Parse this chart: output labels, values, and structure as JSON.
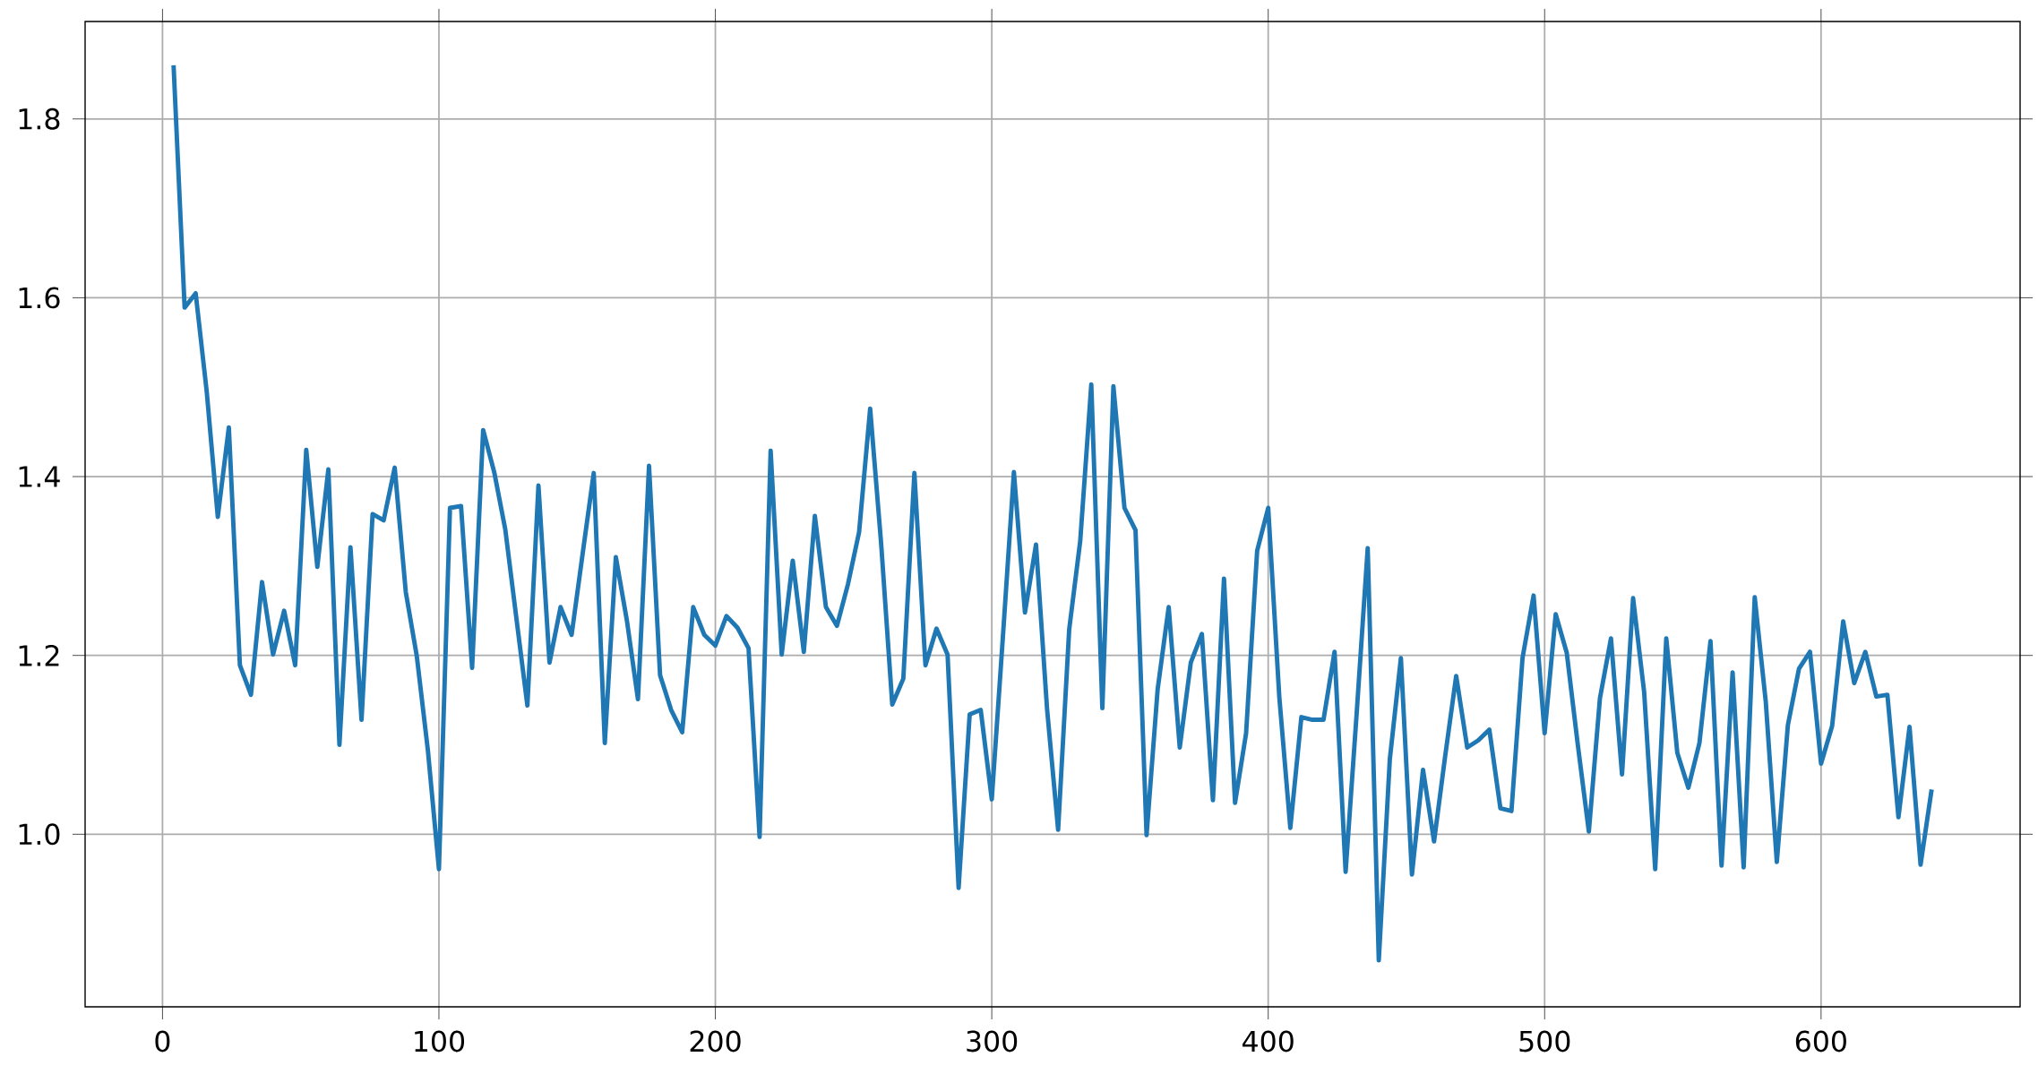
{
  "chart_data": {
    "type": "line",
    "x": [
      4,
      8,
      12,
      16,
      20,
      24,
      28,
      32,
      36,
      40,
      44,
      48,
      52,
      56,
      60,
      64,
      68,
      72,
      76,
      80,
      84,
      88,
      92,
      96,
      100,
      104,
      108,
      112,
      116,
      120,
      124,
      128,
      132,
      136,
      140,
      144,
      148,
      152,
      156,
      160,
      164,
      168,
      172,
      176,
      180,
      184,
      188,
      192,
      196,
      200,
      204,
      208,
      212,
      216,
      220,
      224,
      228,
      232,
      236,
      240,
      244,
      248,
      252,
      256,
      260,
      264,
      268,
      272,
      276,
      280,
      284,
      288,
      292,
      296,
      300,
      304,
      308,
      312,
      316,
      320,
      324,
      328,
      332,
      336,
      340,
      344,
      348,
      352,
      356,
      360,
      364,
      368,
      372,
      376,
      380,
      384,
      388,
      392,
      396,
      400,
      404,
      408,
      412,
      416,
      420,
      424,
      428,
      432,
      436,
      440,
      444,
      448,
      452,
      456,
      460,
      464,
      468,
      472,
      476,
      480,
      484,
      488,
      492,
      496,
      500,
      504,
      508,
      512,
      516,
      520,
      524,
      528,
      532,
      536,
      540,
      544,
      548,
      552,
      556,
      560,
      564,
      568,
      572,
      576,
      580,
      584,
      588,
      592,
      596,
      600,
      604,
      608,
      612,
      616,
      620,
      624,
      628,
      632,
      636,
      640
    ],
    "series": [
      {
        "color": "#1f77b4",
        "values": [
          1.86,
          1.589,
          1.605,
          1.495,
          1.355,
          1.455,
          1.189,
          1.156,
          1.282,
          1.201,
          1.25,
          1.189,
          1.43,
          1.299,
          1.408,
          1.1,
          1.321,
          1.128,
          1.358,
          1.351,
          1.41,
          1.271,
          1.199,
          1.094,
          0.961,
          1.365,
          1.367,
          1.186,
          1.452,
          1.405,
          1.341,
          1.242,
          1.144,
          1.39,
          1.192,
          1.254,
          1.223,
          1.314,
          1.404,
          1.102,
          1.31,
          1.239,
          1.151,
          1.412,
          1.178,
          1.139,
          1.114,
          1.254,
          1.223,
          1.211,
          1.244,
          1.231,
          1.208,
          0.997,
          1.429,
          1.201,
          1.306,
          1.204,
          1.356,
          1.254,
          1.233,
          1.28,
          1.338,
          1.476,
          1.324,
          1.145,
          1.174,
          1.404,
          1.189,
          1.23,
          1.201,
          0.94,
          1.134,
          1.139,
          1.039,
          1.22,
          1.405,
          1.248,
          1.324,
          1.14,
          1.005,
          1.229,
          1.328,
          1.503,
          1.141,
          1.501,
          1.365,
          1.34,
          0.999,
          1.162,
          1.254,
          1.097,
          1.192,
          1.224,
          1.038,
          1.286,
          1.035,
          1.113,
          1.317,
          1.365,
          1.154,
          1.007,
          1.131,
          1.128,
          1.128,
          1.204,
          0.958,
          1.135,
          1.32,
          0.859,
          1.084,
          1.197,
          0.955,
          1.072,
          0.992,
          1.087,
          1.177,
          1.097,
          1.105,
          1.117,
          1.029,
          1.026,
          1.197,
          1.267,
          1.113,
          1.246,
          1.203,
          1.1,
          1.003,
          1.152,
          1.219,
          1.067,
          1.264,
          1.159,
          0.961,
          1.219,
          1.091,
          1.052,
          1.102,
          1.216,
          0.965,
          1.181,
          0.963,
          1.265,
          1.148,
          0.969,
          1.122,
          1.185,
          1.204,
          1.079,
          1.121,
          1.238,
          1.169,
          1.204,
          1.154,
          1.156,
          1.019,
          1.12,
          0.966,
          1.05
        ]
      }
    ],
    "xlim": [
      -28,
      672
    ],
    "ylim": [
      0.807,
      1.909
    ],
    "xticks": [
      0,
      100,
      200,
      300,
      400,
      500,
      600
    ],
    "yticks": [
      {
        "value": 1.0,
        "label": "1.0"
      },
      {
        "value": 1.2,
        "label": "1.2"
      },
      {
        "value": 1.4,
        "label": "1.4"
      },
      {
        "value": 1.6,
        "label": "1.6"
      },
      {
        "value": 1.8,
        "label": "1.8"
      }
    ],
    "grid": true,
    "legend": false,
    "marker": "none",
    "line_style": "solid"
  }
}
